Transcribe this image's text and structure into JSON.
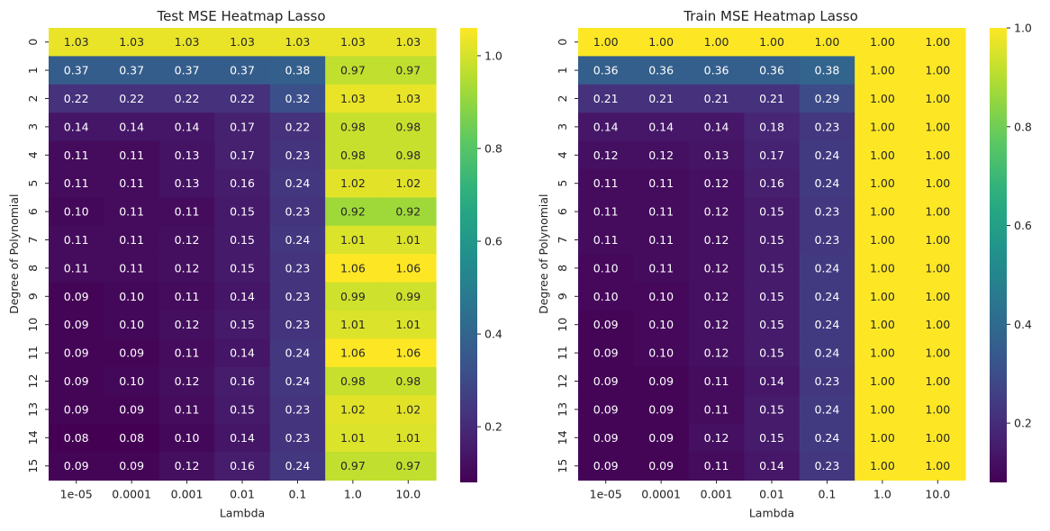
{
  "chart_data": [
    {
      "type": "heatmap",
      "title": "Test MSE Heatmap Lasso",
      "xlabel": "Lambda",
      "ylabel": "Degree of Polynomial",
      "x_categories": [
        "1e-05",
        "0.0001",
        "0.001",
        "0.01",
        "0.1",
        "1.0",
        "10.0"
      ],
      "y_categories": [
        "0",
        "1",
        "2",
        "3",
        "4",
        "5",
        "6",
        "7",
        "8",
        "9",
        "10",
        "11",
        "12",
        "13",
        "14",
        "15"
      ],
      "values": [
        [
          "1.03",
          "1.03",
          "1.03",
          "1.03",
          "1.03",
          "1.03",
          "1.03"
        ],
        [
          "0.37",
          "0.37",
          "0.37",
          "0.37",
          "0.38",
          "0.97",
          "0.97"
        ],
        [
          "0.22",
          "0.22",
          "0.22",
          "0.22",
          "0.32",
          "1.03",
          "1.03"
        ],
        [
          "0.14",
          "0.14",
          "0.14",
          "0.17",
          "0.22",
          "0.98",
          "0.98"
        ],
        [
          "0.11",
          "0.11",
          "0.13",
          "0.17",
          "0.23",
          "0.98",
          "0.98"
        ],
        [
          "0.11",
          "0.11",
          "0.13",
          "0.16",
          "0.24",
          "1.02",
          "1.02"
        ],
        [
          "0.10",
          "0.11",
          "0.11",
          "0.15",
          "0.23",
          "0.92",
          "0.92"
        ],
        [
          "0.11",
          "0.11",
          "0.12",
          "0.15",
          "0.24",
          "1.01",
          "1.01"
        ],
        [
          "0.11",
          "0.11",
          "0.12",
          "0.15",
          "0.23",
          "1.06",
          "1.06"
        ],
        [
          "0.09",
          "0.10",
          "0.11",
          "0.14",
          "0.23",
          "0.99",
          "0.99"
        ],
        [
          "0.09",
          "0.10",
          "0.12",
          "0.15",
          "0.23",
          "1.01",
          "1.01"
        ],
        [
          "0.09",
          "0.09",
          "0.11",
          "0.14",
          "0.24",
          "1.06",
          "1.06"
        ],
        [
          "0.09",
          "0.10",
          "0.12",
          "0.16",
          "0.24",
          "0.98",
          "0.98"
        ],
        [
          "0.09",
          "0.09",
          "0.11",
          "0.15",
          "0.23",
          "1.02",
          "1.02"
        ],
        [
          "0.08",
          "0.08",
          "0.10",
          "0.14",
          "0.23",
          "1.01",
          "1.01"
        ],
        [
          "0.09",
          "0.09",
          "0.12",
          "0.16",
          "0.24",
          "0.97",
          "0.97"
        ]
      ],
      "colormap": "viridis",
      "color_range": [
        0.08,
        1.06
      ],
      "colorbar_ticks": [
        "0.2",
        "0.4",
        "0.6",
        "0.8",
        "1.0"
      ]
    },
    {
      "type": "heatmap",
      "title": "Train MSE Heatmap Lasso",
      "xlabel": "Lambda",
      "ylabel": "Degree of Polynomial",
      "x_categories": [
        "1e-05",
        "0.0001",
        "0.001",
        "0.01",
        "0.1",
        "1.0",
        "10.0"
      ],
      "y_categories": [
        "0",
        "1",
        "2",
        "3",
        "4",
        "5",
        "6",
        "7",
        "8",
        "9",
        "10",
        "11",
        "12",
        "13",
        "14",
        "15"
      ],
      "values": [
        [
          "1.00",
          "1.00",
          "1.00",
          "1.00",
          "1.00",
          "1.00",
          "1.00"
        ],
        [
          "0.36",
          "0.36",
          "0.36",
          "0.36",
          "0.38",
          "1.00",
          "1.00"
        ],
        [
          "0.21",
          "0.21",
          "0.21",
          "0.21",
          "0.29",
          "1.00",
          "1.00"
        ],
        [
          "0.14",
          "0.14",
          "0.14",
          "0.18",
          "0.23",
          "1.00",
          "1.00"
        ],
        [
          "0.12",
          "0.12",
          "0.13",
          "0.17",
          "0.24",
          "1.00",
          "1.00"
        ],
        [
          "0.11",
          "0.11",
          "0.12",
          "0.16",
          "0.24",
          "1.00",
          "1.00"
        ],
        [
          "0.11",
          "0.11",
          "0.12",
          "0.15",
          "0.23",
          "1.00",
          "1.00"
        ],
        [
          "0.11",
          "0.11",
          "0.12",
          "0.15",
          "0.23",
          "1.00",
          "1.00"
        ],
        [
          "0.10",
          "0.11",
          "0.12",
          "0.15",
          "0.24",
          "1.00",
          "1.00"
        ],
        [
          "0.10",
          "0.10",
          "0.12",
          "0.15",
          "0.24",
          "1.00",
          "1.00"
        ],
        [
          "0.09",
          "0.10",
          "0.12",
          "0.15",
          "0.24",
          "1.00",
          "1.00"
        ],
        [
          "0.09",
          "0.10",
          "0.12",
          "0.15",
          "0.24",
          "1.00",
          "1.00"
        ],
        [
          "0.09",
          "0.09",
          "0.11",
          "0.14",
          "0.23",
          "1.00",
          "1.00"
        ],
        [
          "0.09",
          "0.09",
          "0.11",
          "0.15",
          "0.24",
          "1.00",
          "1.00"
        ],
        [
          "0.09",
          "0.09",
          "0.12",
          "0.15",
          "0.24",
          "1.00",
          "1.00"
        ],
        [
          "0.09",
          "0.09",
          "0.11",
          "0.14",
          "0.23",
          "1.00",
          "1.00"
        ]
      ],
      "colormap": "viridis",
      "color_range": [
        0.08,
        1.0
      ],
      "colorbar_ticks": [
        "0.2",
        "0.4",
        "0.6",
        "0.8",
        "1.0"
      ]
    }
  ]
}
